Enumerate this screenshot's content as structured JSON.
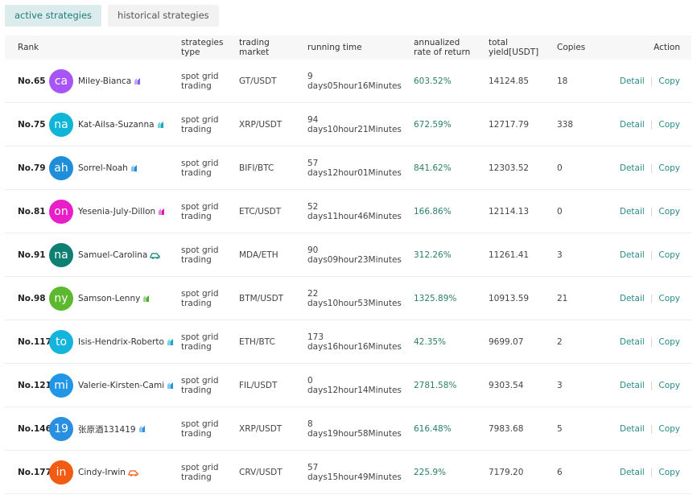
{
  "tabs": {
    "active": "active strategies",
    "historical": "historical strategies"
  },
  "header": {
    "rank": "Rank",
    "type_l1": "strategies",
    "type_l2": "type",
    "market_l1": "trading",
    "market_l2": "market",
    "running": "running time",
    "rate_l1": "annualized",
    "rate_l2": "rate of return",
    "yield_l1": "total",
    "yield_l2": "yield[USDT]",
    "copies": "Copies",
    "action": "Action"
  },
  "colors": {
    "accent": "#1a7d7b",
    "rate": "#2a7f67",
    "link": "#2a8a86"
  },
  "rows": [
    {
      "rank": "No.65",
      "avatar": "ca",
      "avatar_color": "#a855f7",
      "name": "Miley-Bianca",
      "badge_icon": "bot-badge-icon",
      "badge_color": "#8b5cf6",
      "type_l1": "spot grid",
      "type_l2": "trading",
      "market": "GT/USDT",
      "time_l1": "9",
      "time_l2": "days05hour16Minutes",
      "rate": "603.52%",
      "yield": "14124.85",
      "copies": "18",
      "detail": "Detail",
      "copy": "Copy"
    },
    {
      "rank": "No.75",
      "avatar": "na",
      "avatar_color": "#0fb5d6",
      "name": "Kat-Ailsa-Suzanna",
      "badge_icon": "bot-badge-icon",
      "badge_color": "#14a9c9",
      "type_l1": "spot grid",
      "type_l2": "trading",
      "market": "XRP/USDT",
      "time_l1": "94",
      "time_l2": "days10hour21Minutes",
      "rate": "672.59%",
      "yield": "12717.79",
      "copies": "338",
      "detail": "Detail",
      "copy": "Copy"
    },
    {
      "rank": "No.79",
      "avatar": "ah",
      "avatar_color": "#1f8ed8",
      "name": "Sorrel-Noah",
      "badge_icon": "bot-badge-icon",
      "badge_color": "#1f8ed8",
      "type_l1": "spot grid",
      "type_l2": "trading",
      "market": "BIFI/BTC",
      "time_l1": "57",
      "time_l2": "days12hour01Minutes",
      "rate": "841.62%",
      "yield": "12303.52",
      "copies": "0",
      "detail": "Detail",
      "copy": "Copy"
    },
    {
      "rank": "No.81",
      "avatar": "on",
      "avatar_color": "#e91ec8",
      "name": "Yesenia-July-Dillon",
      "badge_icon": "bot-badge-icon",
      "badge_color": "#d81bb8",
      "type_l1": "spot grid",
      "type_l2": "trading",
      "market": "ETC/USDT",
      "time_l1": "52",
      "time_l2": "days11hour46Minutes",
      "rate": "166.86%",
      "yield": "12114.13",
      "copies": "0",
      "detail": "Detail",
      "copy": "Copy"
    },
    {
      "rank": "No.91",
      "avatar": "na",
      "avatar_color": "#0e7f73",
      "name": "Samuel-Carolina",
      "badge_icon": "car-badge-icon",
      "badge_color": "#0e7f73",
      "type_l1": "spot grid",
      "type_l2": "trading",
      "market": "MDA/ETH",
      "time_l1": "90",
      "time_l2": "days09hour23Minutes",
      "rate": "312.26%",
      "yield": "11261.41",
      "copies": "3",
      "detail": "Detail",
      "copy": "Copy"
    },
    {
      "rank": "No.98",
      "avatar": "ny",
      "avatar_color": "#5cb82c",
      "name": "Samson-Lenny",
      "badge_icon": "bot-badge-icon",
      "badge_color": "#4caf27",
      "type_l1": "spot grid",
      "type_l2": "trading",
      "market": "BTM/USDT",
      "time_l1": "22",
      "time_l2": "days10hour53Minutes",
      "rate": "1325.89%",
      "yield": "10913.59",
      "copies": "21",
      "detail": "Detail",
      "copy": "Copy"
    },
    {
      "rank": "No.117",
      "avatar": "to",
      "avatar_color": "#14b4dc",
      "name": "Isis-Hendrix-Roberto",
      "badge_icon": "bot-badge-icon",
      "badge_color": "#14a9c9",
      "type_l1": "spot grid",
      "type_l2": "trading",
      "market": "ETH/BTC",
      "time_l1": "173",
      "time_l2": "days16hour16Minutes",
      "rate": "42.35%",
      "yield": "9699.07",
      "copies": "2",
      "detail": "Detail",
      "copy": "Copy"
    },
    {
      "rank": "No.121",
      "avatar": "mi",
      "avatar_color": "#2196e8",
      "name": "Valerie-Kirsten-Cami",
      "badge_icon": "bot-badge-icon",
      "badge_color": "#2196e8",
      "type_l1": "spot grid",
      "type_l2": "trading",
      "market": "FIL/USDT",
      "time_l1": "0",
      "time_l2": "days12hour14Minutes",
      "rate": "2781.58%",
      "yield": "9303.54",
      "copies": "3",
      "detail": "Detail",
      "copy": "Copy"
    },
    {
      "rank": "No.146",
      "avatar": "19",
      "avatar_color": "#2a8fe0",
      "name": "张原酒131419",
      "badge_icon": "bot-badge-icon",
      "badge_color": "#2a8fe0",
      "type_l1": "spot grid",
      "type_l2": "trading",
      "market": "XRP/USDT",
      "time_l1": "8",
      "time_l2": "days19hour58Minutes",
      "rate": "616.48%",
      "yield": "7983.68",
      "copies": "5",
      "detail": "Detail",
      "copy": "Copy"
    },
    {
      "rank": "No.177",
      "avatar": "in",
      "avatar_color": "#f25b12",
      "name": "Cindy-Irwin",
      "badge_icon": "car-badge-icon",
      "badge_color": "#f25b12",
      "type_l1": "spot grid",
      "type_l2": "trading",
      "market": "CRV/USDT",
      "time_l1": "57",
      "time_l2": "days15hour49Minutes",
      "rate": "225.9%",
      "yield": "7179.20",
      "copies": "6",
      "detail": "Detail",
      "copy": "Copy"
    }
  ]
}
